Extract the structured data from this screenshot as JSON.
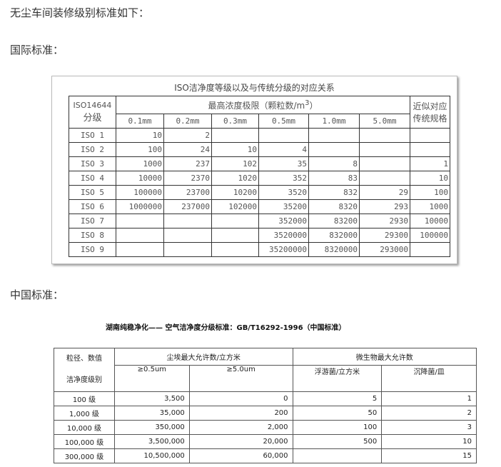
{
  "intro": "无尘车间装修级别标准如下：",
  "intl_heading": "国际标准：",
  "iso_table": {
    "title": "ISO洁净度等级以及与传统分级的对应关系",
    "col0": [
      "ISO14644",
      "分级"
    ],
    "group": "最高浓度极限（颗粒数/m",
    "group_sup": "3",
    "group_end": "）",
    "last": [
      "近似对应",
      "传统规格"
    ],
    "sizes": [
      "0.1mm",
      "0.2mm",
      "0.3mm",
      "0.5mm",
      "1.0mm",
      "5.0mm"
    ],
    "rows": [
      [
        "ISO 1",
        "10",
        "2",
        "",
        "",
        "",
        "",
        ""
      ],
      [
        "ISO 2",
        "100",
        "24",
        "10",
        "4",
        "",
        "",
        ""
      ],
      [
        "ISO 3",
        "1000",
        "237",
        "102",
        "35",
        "8",
        "",
        "1"
      ],
      [
        "ISO 4",
        "10000",
        "2370",
        "1020",
        "352",
        "83",
        "",
        "10"
      ],
      [
        "ISO 5",
        "100000",
        "23700",
        "10200",
        "3520",
        "832",
        "29",
        "100"
      ],
      [
        "ISO 6",
        "1000000",
        "237000",
        "102000",
        "35200",
        "8320",
        "293",
        "1000"
      ],
      [
        "ISO 7",
        "",
        "",
        "",
        "352000",
        "83200",
        "2930",
        "10000"
      ],
      [
        "ISO 8",
        "",
        "",
        "",
        "3520000",
        "832000",
        "29300",
        "100000"
      ],
      [
        "ISO 9",
        "",
        "",
        "",
        "35200000",
        "8320000",
        "293000",
        ""
      ]
    ]
  },
  "cn_heading": "中国标准：",
  "gb_table": {
    "title": "湖南纯稳净化——  空气洁净度分级标准：GB/T16292-1996（中国标准）",
    "corner_top": "粒径、数值",
    "corner_bottom": "洁净度级别",
    "dust": "尘埃最大允许数/立方米",
    "micro": "微生物最大允许数",
    "sub": [
      "≥0.5um",
      "≥5.0um",
      "浮游菌/立方米",
      "沉降菌/皿"
    ],
    "rows": [
      [
        "100 级",
        "3,500",
        "0",
        "5",
        "1"
      ],
      [
        "1,000 级",
        "35,000",
        "200",
        "50",
        "2"
      ],
      [
        "10,000 级",
        "350,000",
        "2,000",
        "100",
        "3"
      ],
      [
        "100,000 级",
        "3,500,000",
        "20,000",
        "500",
        "10"
      ],
      [
        "300,000 级",
        "10,500,000",
        "60,000",
        "",
        "15"
      ]
    ]
  }
}
